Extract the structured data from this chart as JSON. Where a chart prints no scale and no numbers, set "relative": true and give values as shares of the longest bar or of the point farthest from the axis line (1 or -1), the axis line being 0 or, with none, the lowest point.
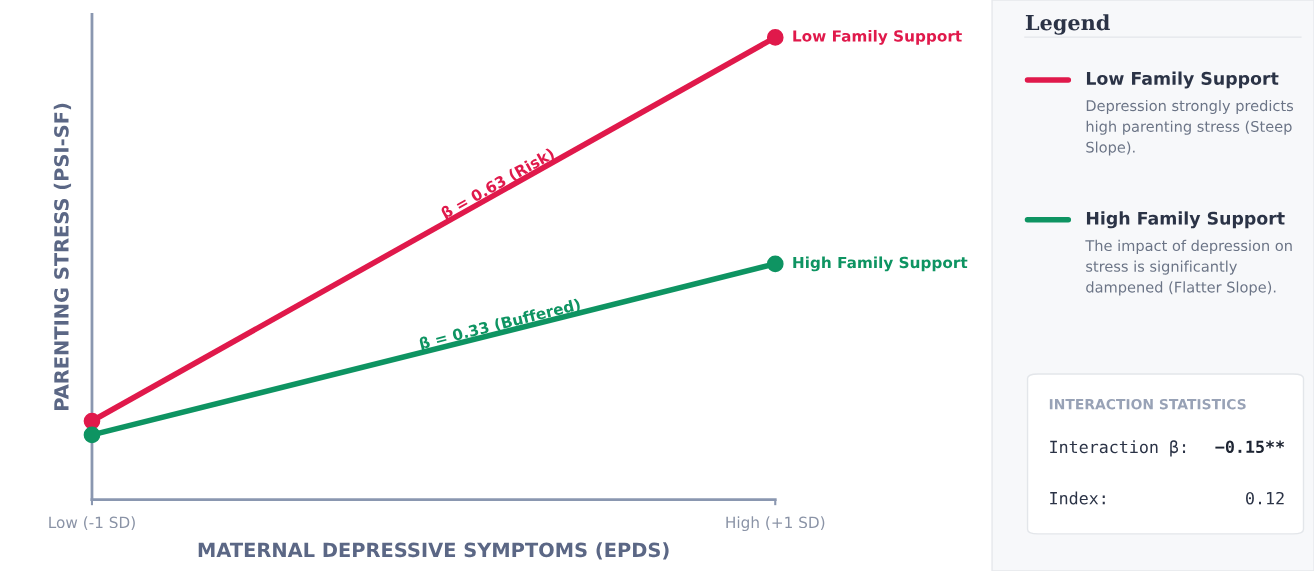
{
  "chart_data": {
    "type": "line",
    "relative": true,
    "xlabel": "MATERNAL DEPRESSIVE SYMPTOMS (EPDS)",
    "ylabel": "PARENTING STRESS (PSI-SF)",
    "x": [
      -1,
      1
    ],
    "xlim": [
      -1,
      1
    ],
    "xticks": [
      {
        "value": -1,
        "label": "Low (-1 SD)"
      },
      {
        "value": 1,
        "label": "High (+1 SD)"
      }
    ],
    "series": [
      {
        "name": "Low Family Support",
        "color": "#e0194b",
        "values": [
          0.17,
          1
        ]
      },
      {
        "name": "High Family Support",
        "color": "#0e9462",
        "values": [
          0.14,
          0.51
        ]
      }
    ],
    "marker": "circle",
    "legend": "right",
    "legend_title": "Legend",
    "annotations": [
      "β = 0.63 (Risk)",
      "β = 0.33 (Buffered)",
      "Depression strongly predicts high parenting stress (Steep Slope).",
      "The impact of depression on stress is significantly dampened (Flatter Slope).",
      "INTERACTION STATISTICS",
      "Interaction β:",
      "−0.15**",
      "Index:",
      "0.12"
    ]
  }
}
